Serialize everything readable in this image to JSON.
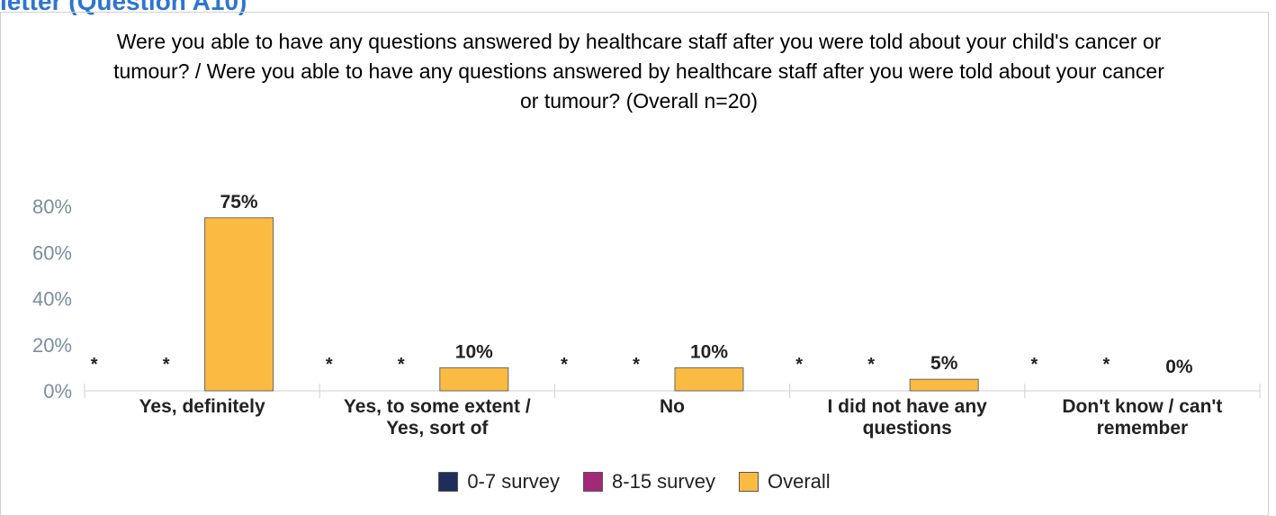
{
  "header": {
    "section_title": "letter (Question A10)"
  },
  "chart_data": {
    "type": "bar",
    "title": "Were you able to have any questions answered by healthcare staff after you were told about your child's cancer or tumour? / Were you able to have any questions answered by healthcare staff after you were told about your cancer or tumour? (Overall n=20)",
    "categories": [
      "Yes, definitely",
      "Yes, to some extent / Yes, sort of",
      "No",
      "I did not have any questions",
      "Don't know / can't remember"
    ],
    "series": [
      {
        "name": "0-7 survey",
        "color": "#1f2d5c",
        "values": [
          null,
          null,
          null,
          null,
          null
        ],
        "labels": [
          "*",
          "*",
          "*",
          "*",
          "*"
        ]
      },
      {
        "name": "8-15 survey",
        "color": "#a3287a",
        "values": [
          null,
          null,
          null,
          null,
          null
        ],
        "labels": [
          "*",
          "*",
          "*",
          "*",
          "*"
        ]
      },
      {
        "name": "Overall",
        "color": "#fbbb43",
        "values": [
          75,
          10,
          10,
          5,
          0
        ],
        "labels": [
          "75%",
          "10%",
          "10%",
          "5%",
          "0%"
        ]
      }
    ],
    "yticks": [
      "0%",
      "20%",
      "40%",
      "60%",
      "80%"
    ],
    "ylim": [
      0,
      80
    ],
    "xlabel": "",
    "ylabel": "",
    "grid": false,
    "legend_position": "bottom"
  }
}
